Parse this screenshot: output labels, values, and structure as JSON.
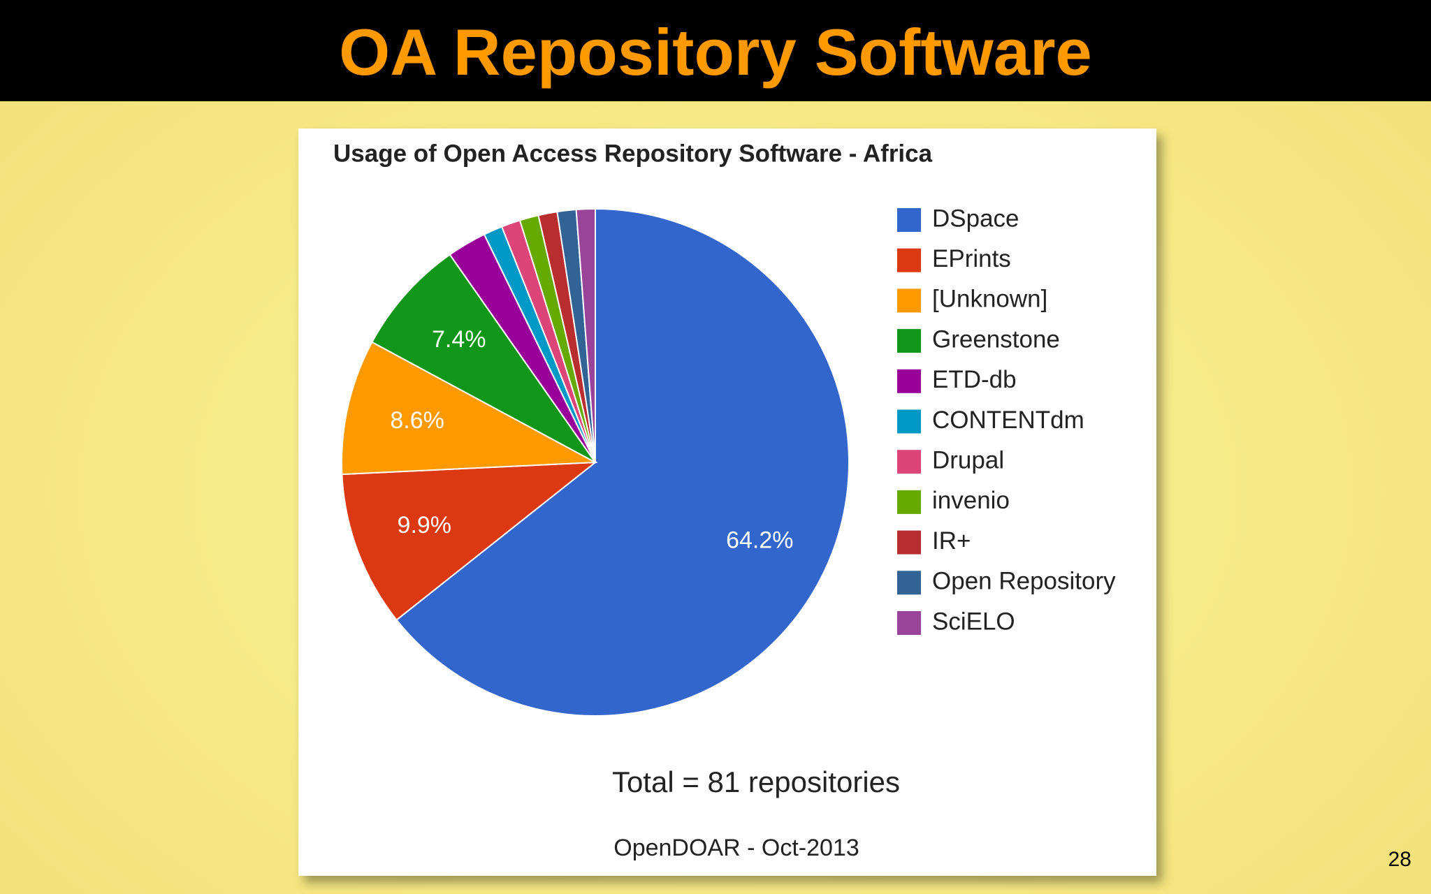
{
  "slide": {
    "title": "OA Repository Software",
    "page_number": "28"
  },
  "chart_data": {
    "type": "pie",
    "title": "Usage of Open Access Repository Software - Africa",
    "categories": [
      "DSpace",
      "EPrints",
      "[Unknown]",
      "Greenstone",
      "ETD-db",
      "CONTENTdm",
      "Drupal",
      "invenio",
      "IR+",
      "Open Repository",
      "SciELO"
    ],
    "values": [
      64.2,
      9.9,
      8.6,
      7.4,
      2.5,
      1.2,
      1.2,
      1.2,
      1.2,
      1.2,
      1.2
    ],
    "value_labels": [
      "64.2%",
      "9.9%",
      "8.6%",
      "7.4%",
      null,
      null,
      null,
      null,
      null,
      null,
      null
    ],
    "colors": [
      "#3366cc",
      "#dc3912",
      "#ff9900",
      "#109618",
      "#990099",
      "#0099c6",
      "#dd4477",
      "#66aa00",
      "#b82e2e",
      "#316395",
      "#994499"
    ],
    "legend": "right",
    "annotations": [
      "Total = 81 repositories",
      "OpenDOAR - Oct-2013"
    ]
  }
}
